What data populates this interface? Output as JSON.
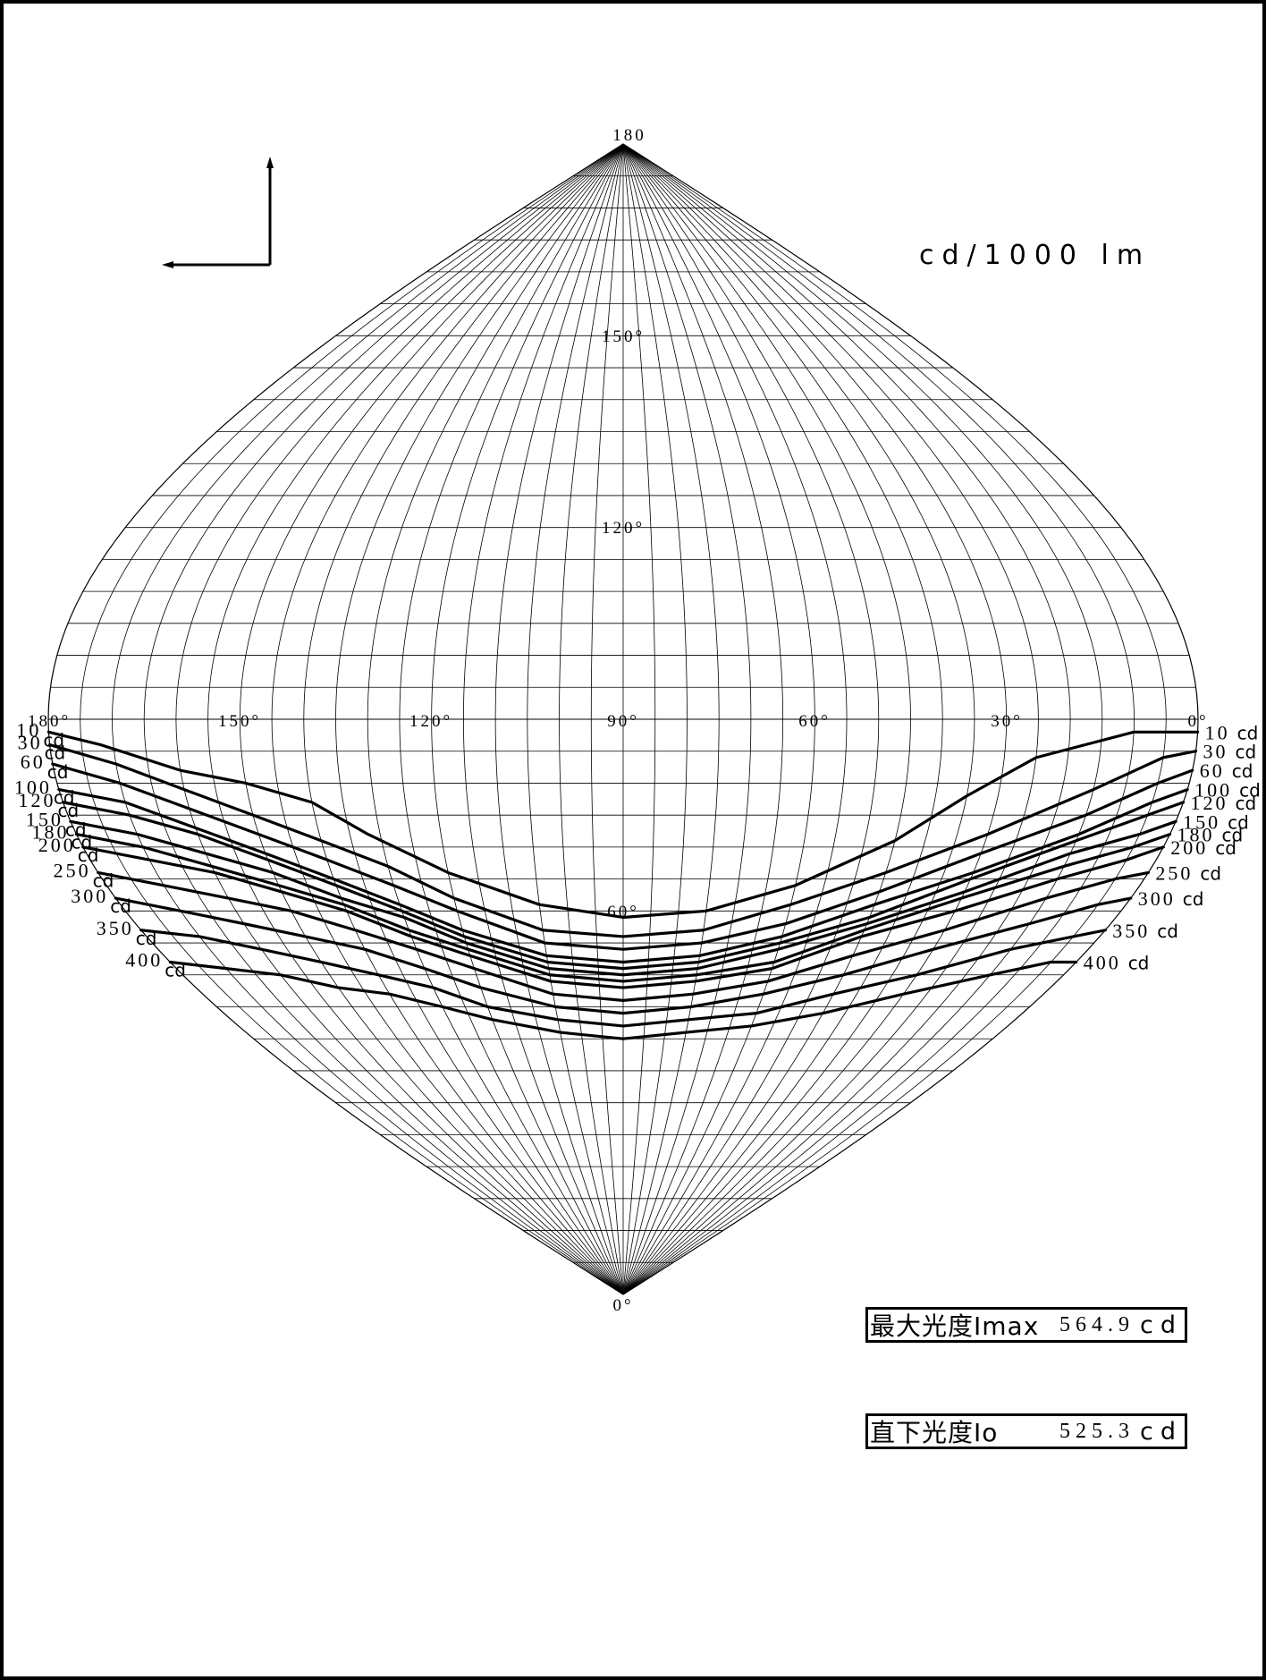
{
  "units": "cd/1000 lm",
  "grid": {
    "vertical_axis_ticks": [
      "180",
      "150°",
      "120°",
      "60°",
      "0°"
    ],
    "horizontal_axis_ticks": [
      "180°",
      "150°",
      "120°",
      "90°",
      "60°",
      "30°",
      "0°"
    ]
  },
  "chart_data": {
    "type": "isocandela",
    "units": "cd/1000 lm",
    "horizontal_angle_ticks": [
      "180°",
      "150°",
      "120°",
      "90°",
      "60°",
      "30°",
      "0°"
    ],
    "vertical_angle_ticks": [
      "180",
      "150°",
      "120°",
      "60°",
      "0°"
    ],
    "contours": [
      {
        "name": "10 cd",
        "value": 10,
        "points": [
          [
            180,
            88
          ],
          [
            172,
            86
          ],
          [
            160,
            82
          ],
          [
            150,
            80
          ],
          [
            140,
            77
          ],
          [
            132,
            72
          ],
          [
            120,
            66
          ],
          [
            105,
            61
          ],
          [
            90,
            59
          ],
          [
            75,
            60
          ],
          [
            60,
            64
          ],
          [
            45,
            71
          ],
          [
            35,
            78
          ],
          [
            25,
            84
          ],
          [
            10,
            88
          ],
          [
            0,
            88
          ]
        ]
      },
      {
        "name": "30 cd",
        "value": 30,
        "points": [
          [
            180,
            86
          ],
          [
            170,
            83
          ],
          [
            160,
            79
          ],
          [
            150,
            75
          ],
          [
            140,
            71
          ],
          [
            130,
            67
          ],
          [
            120,
            62
          ],
          [
            105,
            57
          ],
          [
            90,
            56
          ],
          [
            75,
            57
          ],
          [
            60,
            61
          ],
          [
            45,
            66
          ],
          [
            30,
            72
          ],
          [
            15,
            79
          ],
          [
            5,
            84
          ],
          [
            0,
            85
          ]
        ]
      },
      {
        "name": "60 cd",
        "value": 60,
        "points": [
          [
            180,
            83
          ],
          [
            170,
            80
          ],
          [
            160,
            76
          ],
          [
            150,
            72
          ],
          [
            140,
            68
          ],
          [
            130,
            64
          ],
          [
            120,
            60
          ],
          [
            105,
            55
          ],
          [
            90,
            54
          ],
          [
            75,
            55
          ],
          [
            60,
            58
          ],
          [
            45,
            63
          ],
          [
            30,
            69
          ],
          [
            15,
            75
          ],
          [
            5,
            80
          ],
          [
            0,
            82
          ]
        ]
      },
      {
        "name": "100 cd",
        "value": 100,
        "points": [
          [
            180,
            79
          ],
          [
            170,
            77
          ],
          [
            160,
            73
          ],
          [
            150,
            69
          ],
          [
            140,
            65
          ],
          [
            130,
            61
          ],
          [
            120,
            57
          ],
          [
            105,
            53
          ],
          [
            90,
            52
          ],
          [
            75,
            53
          ],
          [
            60,
            56
          ],
          [
            45,
            61
          ],
          [
            30,
            66
          ],
          [
            15,
            72
          ],
          [
            5,
            77
          ],
          [
            0,
            79
          ]
        ]
      },
      {
        "name": "120 cd",
        "value": 120,
        "points": [
          [
            180,
            77
          ],
          [
            170,
            75
          ],
          [
            160,
            72
          ],
          [
            150,
            68
          ],
          [
            140,
            64
          ],
          [
            130,
            60
          ],
          [
            120,
            56
          ],
          [
            105,
            52
          ],
          [
            90,
            51
          ],
          [
            75,
            52
          ],
          [
            60,
            55
          ],
          [
            45,
            59
          ],
          [
            30,
            65
          ],
          [
            15,
            71
          ],
          [
            5,
            75
          ],
          [
            0,
            77
          ]
        ]
      },
      {
        "name": "150 cd",
        "value": 150,
        "points": [
          [
            180,
            74
          ],
          [
            170,
            72
          ],
          [
            160,
            69
          ],
          [
            150,
            66
          ],
          [
            140,
            62
          ],
          [
            130,
            59
          ],
          [
            120,
            55
          ],
          [
            105,
            51
          ],
          [
            90,
            50
          ],
          [
            75,
            51
          ],
          [
            60,
            54
          ],
          [
            45,
            58
          ],
          [
            30,
            63
          ],
          [
            15,
            69
          ],
          [
            5,
            72
          ],
          [
            0,
            74
          ]
        ]
      },
      {
        "name": "180 cd",
        "value": 180,
        "points": [
          [
            180,
            72
          ],
          [
            170,
            70
          ],
          [
            160,
            67
          ],
          [
            150,
            64
          ],
          [
            140,
            61
          ],
          [
            130,
            57
          ],
          [
            120,
            54
          ],
          [
            105,
            50
          ],
          [
            90,
            49
          ],
          [
            75,
            50
          ],
          [
            60,
            52
          ],
          [
            45,
            57
          ],
          [
            30,
            62
          ],
          [
            15,
            67
          ],
          [
            5,
            70
          ],
          [
            0,
            72
          ]
        ]
      },
      {
        "name": "200 cd",
        "value": 200,
        "points": [
          [
            180,
            70
          ],
          [
            170,
            68
          ],
          [
            160,
            66
          ],
          [
            150,
            63
          ],
          [
            140,
            60
          ],
          [
            130,
            56
          ],
          [
            120,
            53
          ],
          [
            105,
            49
          ],
          [
            90,
            48
          ],
          [
            75,
            49
          ],
          [
            60,
            51
          ],
          [
            45,
            56
          ],
          [
            30,
            60
          ],
          [
            15,
            65
          ],
          [
            5,
            68
          ],
          [
            0,
            70
          ]
        ]
      },
      {
        "name": "250 cd",
        "value": 250,
        "points": [
          [
            180,
            66
          ],
          [
            170,
            64
          ],
          [
            160,
            62
          ],
          [
            150,
            60
          ],
          [
            140,
            57
          ],
          [
            130,
            54
          ],
          [
            120,
            51
          ],
          [
            105,
            47
          ],
          [
            90,
            46
          ],
          [
            75,
            47
          ],
          [
            60,
            49
          ],
          [
            45,
            53
          ],
          [
            30,
            57
          ],
          [
            15,
            62
          ],
          [
            5,
            65
          ],
          [
            0,
            66
          ]
        ]
      },
      {
        "name": "300 cd",
        "value": 300,
        "points": [
          [
            180,
            62
          ],
          [
            170,
            60
          ],
          [
            160,
            58
          ],
          [
            150,
            56
          ],
          [
            140,
            54
          ],
          [
            130,
            51
          ],
          [
            120,
            48
          ],
          [
            105,
            45
          ],
          [
            90,
            44
          ],
          [
            75,
            45
          ],
          [
            60,
            47
          ],
          [
            45,
            50
          ],
          [
            30,
            54
          ],
          [
            15,
            58
          ],
          [
            5,
            61
          ],
          [
            0,
            62
          ]
        ]
      },
      {
        "name": "350 cd",
        "value": 350,
        "points": [
          [
            180,
            57
          ],
          [
            170,
            56
          ],
          [
            160,
            54
          ],
          [
            150,
            52
          ],
          [
            140,
            50
          ],
          [
            130,
            48
          ],
          [
            120,
            45
          ],
          [
            105,
            43
          ],
          [
            90,
            42
          ],
          [
            75,
            43
          ],
          [
            60,
            44
          ],
          [
            45,
            47
          ],
          [
            30,
            50
          ],
          [
            15,
            54
          ],
          [
            5,
            56
          ],
          [
            0,
            57
          ]
        ]
      },
      {
        "name": "400 cd",
        "value": 400,
        "points": [
          [
            180,
            52
          ],
          [
            170,
            51
          ],
          [
            160,
            50
          ],
          [
            150,
            48
          ],
          [
            140,
            47
          ],
          [
            130,
            45
          ],
          [
            120,
            43
          ],
          [
            105,
            41
          ],
          [
            90,
            40
          ],
          [
            75,
            41
          ],
          [
            60,
            42
          ],
          [
            45,
            44
          ],
          [
            30,
            47
          ],
          [
            15,
            50
          ],
          [
            5,
            52
          ],
          [
            0,
            52
          ]
        ]
      }
    ]
  },
  "info": {
    "imax": {
      "label": "最大光度Imax",
      "value": "564.9",
      "unit": "cd"
    },
    "io": {
      "label": "直下光度Io",
      "value": "525.3",
      "unit": "cd"
    }
  }
}
